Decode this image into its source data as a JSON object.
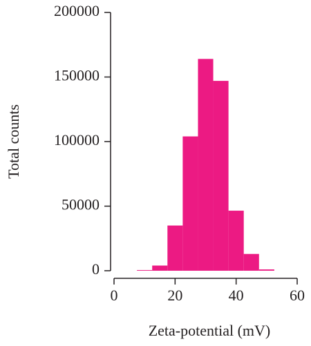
{
  "chart_data": {
    "type": "histogram",
    "x_label": "Zeta-potential (mV)",
    "y_label": "Total counts",
    "bins": [
      7.5,
      12.5,
      17.5,
      22.5,
      27.5,
      32.5,
      37.5,
      42.5,
      47.5,
      52.5
    ],
    "values": [
      500,
      4000,
      35000,
      104000,
      164000,
      147000,
      46500,
      13000,
      1000
    ],
    "color": "#ec1a83",
    "xlim": [
      0,
      60
    ],
    "xticks": [
      0,
      20,
      40,
      60
    ],
    "ylim": [
      0,
      200000
    ],
    "yticks": [
      0,
      50000,
      100000,
      150000,
      200000
    ]
  }
}
